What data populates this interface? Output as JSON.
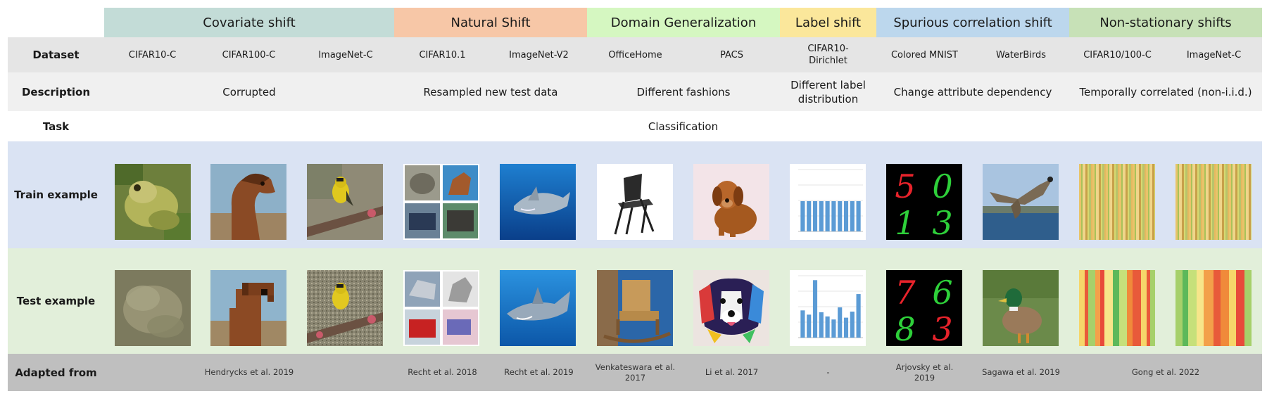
{
  "groups": [
    {
      "label": "Covariate shift",
      "color": "#c3dcd7"
    },
    {
      "label": "Natural Shift",
      "color": "#f7c7a7"
    },
    {
      "label": "Domain Generalization",
      "color": "#d5f7c1"
    },
    {
      "label": "Label shift",
      "color": "#fbe79b"
    },
    {
      "label": "Spurious correlation shift",
      "color": "#bcd7ed"
    },
    {
      "label": "Non-stationary shifts",
      "color": "#c7e1b7"
    }
  ],
  "row_labels": {
    "dataset": "Dataset",
    "description": "Description",
    "task": "Task",
    "train": "Train example",
    "test": "Test example",
    "adapted": "Adapted from"
  },
  "datasets": [
    "CIFAR10-C",
    "CIFAR100-C",
    "ImageNet-C",
    "CIFAR10.1",
    "ImageNet-V2",
    "OfficeHome",
    "PACS",
    "CIFAR10-\nDirichlet",
    "Colored MNIST",
    "WaterBirds",
    "CIFAR10/100-C",
    "ImageNet-C"
  ],
  "descriptions": [
    "Corrupted",
    "Resampled new test data",
    "Different fashions",
    "Different label\ndistribution",
    "Change attribute dependency",
    "Temporally correlated (non-i.i.d.)"
  ],
  "task": "Classification",
  "sources": [
    "Hendrycks et al. 2019",
    "Recht et al. 2018",
    "Recht et al. 2019",
    "Venkateswara et al.\n2017",
    "Li et al. 2017",
    "-",
    "Arjovsky et al.\n2019",
    "Sagawa et al. 2019",
    "Gong et al. 2022"
  ],
  "train_images": [
    "frog-image",
    "horse-image",
    "bird-on-branch-image",
    "mixed-grid-image",
    "shark-image",
    "folding-chair-image",
    "dog-image",
    "uniform-label-histogram",
    "colored-digits-image",
    "flying-bird-image",
    "stripes-image",
    "stripes-image"
  ],
  "test_images": [
    "blurred-frog-image",
    "pixelated-horse-image",
    "noisy-bird-image",
    "mixed-grid-image",
    "shark-image",
    "rocking-chair-image",
    "painted-dog-image",
    "skewed-label-histogram",
    "colored-digits-image",
    "duck-image",
    "color-bars-image",
    "color-bars-image"
  ],
  "digits": {
    "train": [
      "5",
      "0",
      "1",
      "3"
    ],
    "test": [
      "7",
      "6",
      "8",
      "3"
    ]
  },
  "histograms": {
    "uniform": [
      0.5,
      0.5,
      0.5,
      0.5,
      0.5,
      0.5,
      0.5,
      0.5,
      0.5,
      0.5
    ],
    "skewed": [
      0.45,
      0.38,
      0.95,
      0.42,
      0.35,
      0.3,
      0.5,
      0.33,
      0.43,
      0.72
    ]
  },
  "colors": {
    "dataset_row": "#e5e5e5",
    "description_row": "#f0f0f0",
    "train_row": "#dae3f3",
    "test_row": "#e2efda",
    "adapted_row": "#bfbfbf",
    "bar_blue": "#5b9bd5"
  }
}
